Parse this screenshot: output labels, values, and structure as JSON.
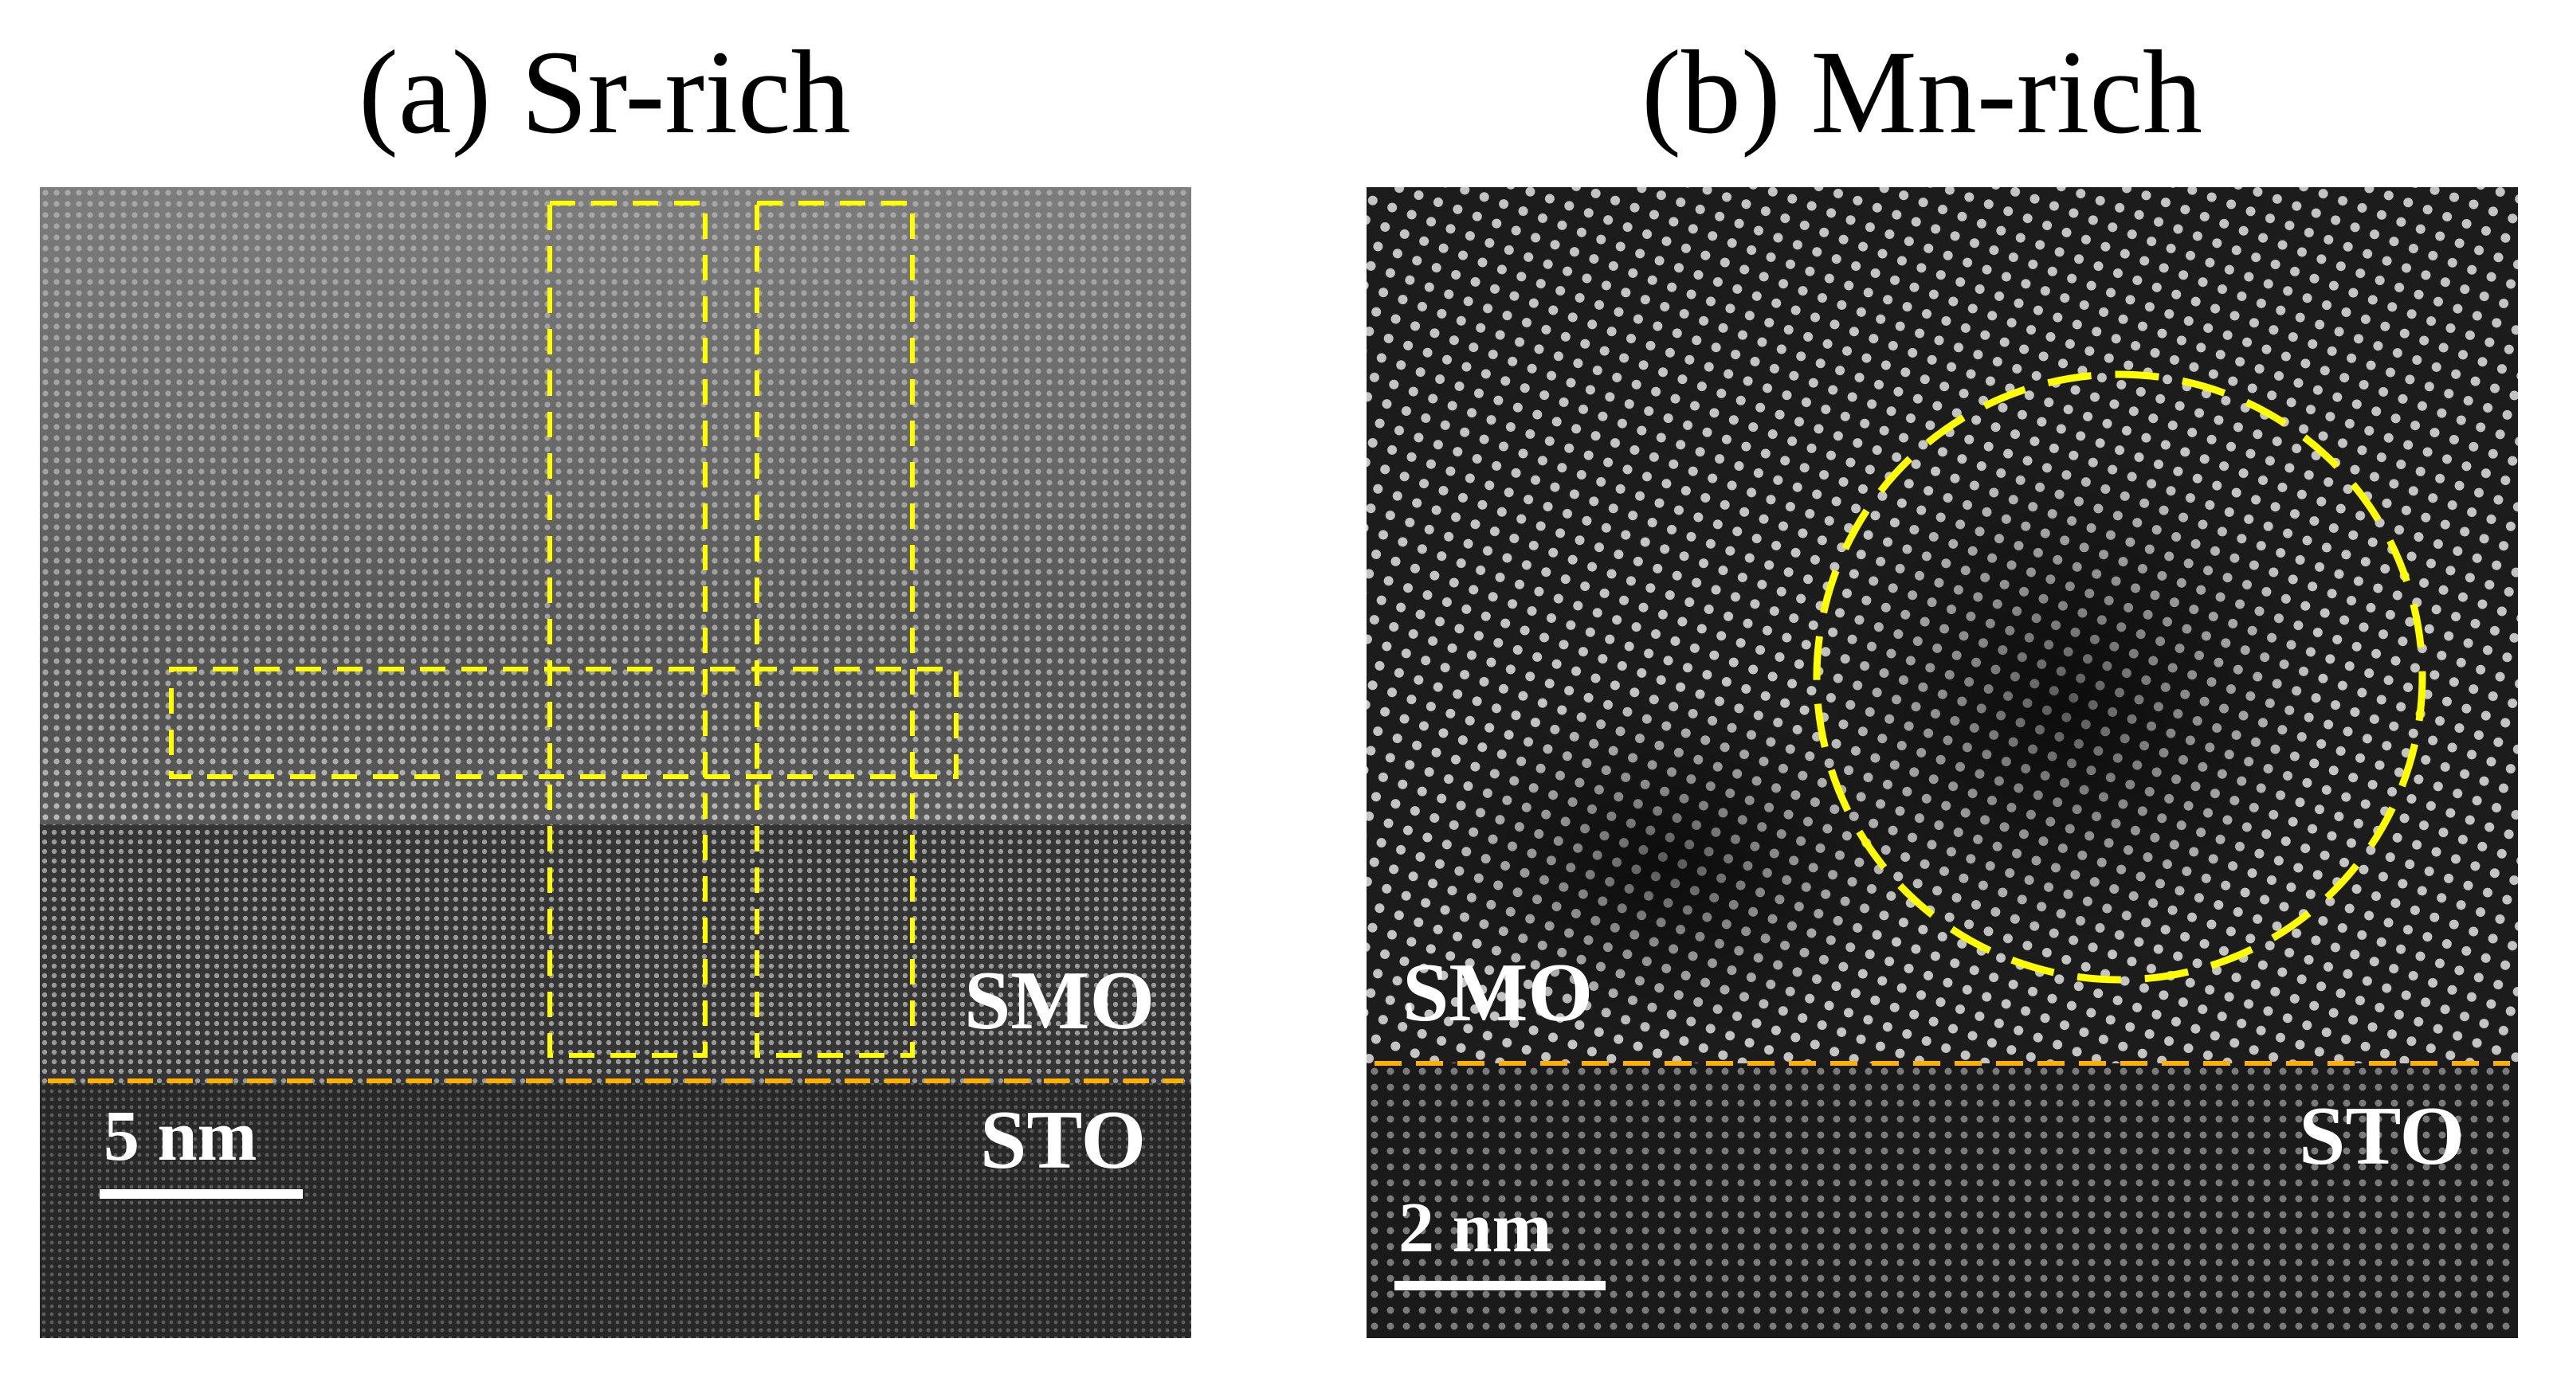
{
  "panel_a": {
    "title": "(a) Sr-rich",
    "layer_top_label": "SMO",
    "layer_bottom_label": "STO",
    "scale_bar_label": "5 nm",
    "highlight_color": "#FFFF00",
    "interface_color": "#FFB000"
  },
  "panel_b": {
    "title": "(b) Mn-rich",
    "layer_top_label": "SMO",
    "layer_bottom_label": "STO",
    "scale_bar_label": "2 nm",
    "highlight_color": "#FFFF00",
    "interface_color": "#FFB000"
  }
}
